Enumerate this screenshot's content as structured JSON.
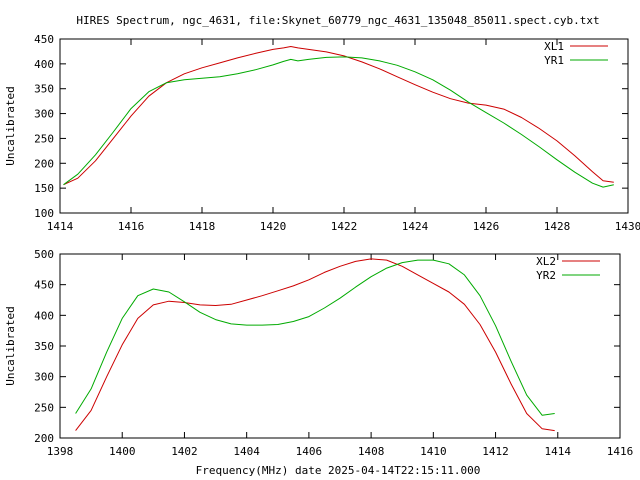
{
  "title": "HIRES Spectrum, ngc_4631, file:Skynet_60779_ngc_4631_135048_85011.spect.cyb.txt",
  "xlabel": "Frequency(MHz) date 2025-04-14T22:15:11.000",
  "colors": {
    "red": "#cc0000",
    "green": "#00aa00",
    "axes": "#000000",
    "background": "#ffffff"
  },
  "chart_data": [
    {
      "type": "line",
      "ylabel": "Uncalibrated",
      "xlim": [
        1414,
        1430
      ],
      "ylim": [
        100,
        450
      ],
      "xticks": [
        1414,
        1416,
        1418,
        1420,
        1422,
        1424,
        1426,
        1428,
        1430
      ],
      "yticks": [
        100,
        150,
        200,
        250,
        300,
        350,
        400,
        450
      ],
      "legend_position": "top-right",
      "grid": false,
      "series": [
        {
          "name": "XL1",
          "color": "#cc0000",
          "x": [
            1414.1,
            1414.5,
            1415.0,
            1415.5,
            1416.0,
            1416.5,
            1417.0,
            1417.5,
            1418.0,
            1418.5,
            1419.0,
            1419.5,
            1420.0,
            1420.3,
            1420.5,
            1420.7,
            1421.0,
            1421.5,
            1422.0,
            1422.5,
            1423.0,
            1423.5,
            1424.0,
            1424.5,
            1425.0,
            1425.5,
            1426.0,
            1426.5,
            1427.0,
            1427.5,
            1428.0,
            1428.5,
            1429.0,
            1429.3,
            1429.6
          ],
          "y": [
            157,
            170,
            205,
            250,
            295,
            335,
            362,
            380,
            392,
            402,
            412,
            421,
            429,
            432,
            435,
            432,
            429,
            424,
            416,
            404,
            390,
            374,
            358,
            343,
            330,
            321,
            317,
            309,
            292,
            270,
            245,
            215,
            183,
            165,
            162
          ]
        },
        {
          "name": "YR1",
          "color": "#00aa00",
          "x": [
            1414.1,
            1414.5,
            1415.0,
            1415.5,
            1416.0,
            1416.5,
            1417.0,
            1417.5,
            1418.0,
            1418.5,
            1419.0,
            1419.5,
            1420.0,
            1420.3,
            1420.5,
            1420.7,
            1421.0,
            1421.5,
            1422.0,
            1422.5,
            1423.0,
            1423.5,
            1424.0,
            1424.5,
            1425.0,
            1425.5,
            1426.0,
            1426.5,
            1427.0,
            1427.5,
            1428.0,
            1428.5,
            1429.0,
            1429.3,
            1429.6
          ],
          "y": [
            157,
            178,
            217,
            263,
            310,
            344,
            362,
            368,
            371,
            374,
            380,
            388,
            398,
            405,
            409,
            406,
            409,
            413,
            414,
            412,
            406,
            397,
            384,
            368,
            347,
            323,
            302,
            281,
            258,
            233,
            207,
            182,
            160,
            152,
            157
          ]
        }
      ]
    },
    {
      "type": "line",
      "ylabel": "Uncalibrated",
      "xlim": [
        1398,
        1416
      ],
      "ylim": [
        200,
        500
      ],
      "xticks": [
        1398,
        1400,
        1402,
        1404,
        1406,
        1408,
        1410,
        1412,
        1414,
        1416
      ],
      "yticks": [
        200,
        250,
        300,
        350,
        400,
        450,
        500
      ],
      "legend_position": "top-right",
      "grid": false,
      "series": [
        {
          "name": "XL2",
          "color": "#cc0000",
          "x": [
            1398.5,
            1399.0,
            1399.5,
            1400.0,
            1400.5,
            1401.0,
            1401.5,
            1402.0,
            1402.5,
            1403.0,
            1403.5,
            1404.0,
            1404.5,
            1405.0,
            1405.5,
            1406.0,
            1406.5,
            1407.0,
            1407.5,
            1408.0,
            1408.5,
            1409.0,
            1409.5,
            1410.0,
            1410.5,
            1411.0,
            1411.5,
            1412.0,
            1412.5,
            1413.0,
            1413.5,
            1413.9
          ],
          "y": [
            212,
            245,
            300,
            352,
            395,
            417,
            423,
            421,
            417,
            416,
            418,
            425,
            432,
            440,
            448,
            458,
            470,
            480,
            488,
            492,
            490,
            480,
            466,
            452,
            438,
            418,
            385,
            340,
            288,
            240,
            215,
            212
          ]
        },
        {
          "name": "YR2",
          "color": "#00aa00",
          "x": [
            1398.5,
            1399.0,
            1399.5,
            1400.0,
            1400.5,
            1401.0,
            1401.5,
            1402.0,
            1402.5,
            1403.0,
            1403.5,
            1404.0,
            1404.5,
            1405.0,
            1405.5,
            1406.0,
            1406.5,
            1407.0,
            1407.5,
            1408.0,
            1408.5,
            1409.0,
            1409.5,
            1410.0,
            1410.5,
            1411.0,
            1411.5,
            1412.0,
            1412.5,
            1413.0,
            1413.5,
            1413.9
          ],
          "y": [
            240,
            280,
            340,
            395,
            432,
            443,
            438,
            422,
            405,
            393,
            386,
            384,
            384,
            385,
            390,
            398,
            412,
            428,
            446,
            463,
            477,
            486,
            490,
            490,
            484,
            466,
            432,
            383,
            325,
            270,
            237,
            240
          ]
        }
      ]
    }
  ]
}
